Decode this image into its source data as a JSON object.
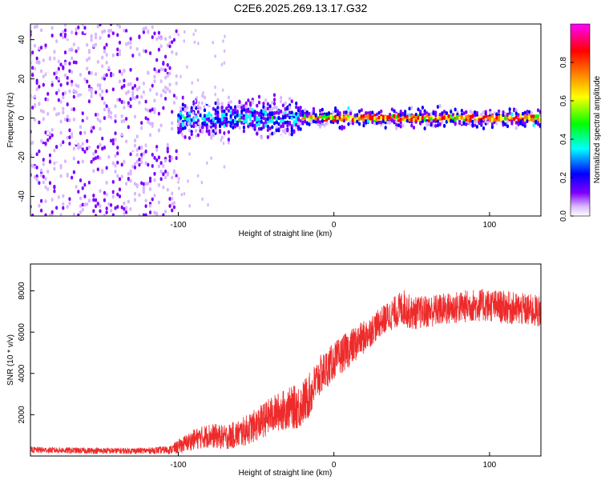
{
  "title": "C2E6.2025.269.13.17.G32",
  "chart_data": [
    {
      "type": "heatmap",
      "xlabel": "Height of straight line (km)",
      "ylabel": "Frequency (Hz)",
      "xlim": [
        -195,
        133
      ],
      "ylim": [
        -50,
        48
      ],
      "xticks": [
        -100,
        0,
        100
      ],
      "xtick_labels": [
        "-100",
        "0",
        "100"
      ],
      "yticks": [
        -40,
        -20,
        0,
        20,
        40
      ],
      "ytick_labels": [
        "-40",
        "-20",
        "0",
        "20",
        "40"
      ],
      "colorbar": {
        "label": "Normalized spectral amplitude",
        "range": [
          0,
          1
        ],
        "ticks": [
          0.0,
          0.2,
          0.4,
          0.6,
          0.8
        ],
        "tick_labels": [
          "0.0",
          "0.2",
          "0.4",
          "0.6",
          "0.8"
        ],
        "colors": [
          "#ffffff",
          "#d9b8ff",
          "#8000ff",
          "#0000ff",
          "#00ffff",
          "#00ff00",
          "#ffff00",
          "#ff8000",
          "#ff0000",
          "#ff00ff"
        ]
      },
      "regions": [
        {
          "x_range": [
            -195,
            -101
          ],
          "description_level": 0.15,
          "freq_spread": 50
        },
        {
          "x_range": [
            -101,
            -20
          ],
          "description_level": 0.35,
          "freq_spread": 7
        },
        {
          "x_range": [
            -20,
            133
          ],
          "description_level": 0.85,
          "freq_spread": 3
        }
      ]
    },
    {
      "type": "line",
      "xlabel": "Height of straight line (km)",
      "ylabel": "SNR (10 * v/v)",
      "xlim": [
        -195,
        133
      ],
      "ylim": [
        0,
        9300
      ],
      "xticks": [
        -100,
        0,
        100
      ],
      "xtick_labels": [
        "-100",
        "0",
        "100"
      ],
      "yticks": [
        2000,
        4000,
        6000,
        8000
      ],
      "ytick_labels": [
        "2000",
        "4000",
        "6000",
        "8000"
      ],
      "color": "#ee2b2b",
      "series": [
        {
          "name": "SNR",
          "x": [
            -195,
            -180,
            -160,
            -140,
            -120,
            -105,
            -100,
            -90,
            -80,
            -70,
            -60,
            -50,
            -40,
            -30,
            -22,
            -15,
            -10,
            0,
            10,
            20,
            30,
            40,
            45,
            50,
            60,
            70,
            80,
            90,
            100,
            110,
            120,
            133
          ],
          "values": [
            300,
            280,
            260,
            250,
            260,
            300,
            450,
            800,
            1000,
            900,
            1100,
            1500,
            2000,
            2300,
            2400,
            3000,
            3800,
            4600,
            5200,
            5800,
            6500,
            7000,
            7200,
            6900,
            7000,
            7100,
            7200,
            7300,
            7300,
            7200,
            7100,
            7000
          ],
          "noise": [
            150,
            150,
            150,
            150,
            150,
            200,
            350,
            500,
            600,
            600,
            700,
            800,
            900,
            1000,
            1100,
            1100,
            1000,
            900,
            900,
            800,
            700,
            800,
            900,
            800,
            800,
            800,
            800,
            800,
            800,
            800,
            800,
            800
          ]
        }
      ]
    }
  ]
}
